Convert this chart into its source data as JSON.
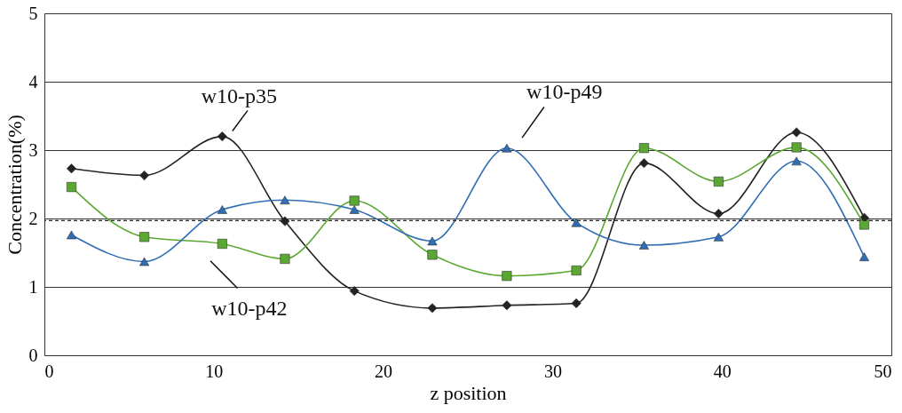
{
  "chart_data": {
    "type": "line",
    "xlabel": "z position",
    "ylabel": "Concentration(%)",
    "x": [
      1.6,
      5.9,
      10.5,
      14.2,
      18.3,
      22.9,
      27.3,
      31.4,
      35.4,
      39.8,
      44.4,
      48.4
    ],
    "xlim": [
      0,
      50
    ],
    "xticks": [
      0,
      10,
      20,
      30,
      40,
      50
    ],
    "ylim": [
      0,
      5
    ],
    "yticks": [
      0,
      1,
      2,
      3,
      4,
      5
    ],
    "grid": "y",
    "series": [
      {
        "name": "w10-p35",
        "color": "#222222",
        "marker": "diamond",
        "values": [
          2.73,
          2.63,
          3.2,
          1.96,
          0.94,
          0.69,
          0.73,
          0.76,
          2.81,
          2.07,
          3.26,
          2.01
        ]
      },
      {
        "name": "w10-p42",
        "color": "#5aa832",
        "marker": "square",
        "values": [
          2.46,
          1.73,
          1.63,
          1.41,
          2.26,
          1.47,
          1.16,
          1.24,
          3.03,
          2.54,
          3.04,
          1.91
        ]
      },
      {
        "name": "w10-p49",
        "color": "#2f6db5",
        "marker": "triangle",
        "values": [
          1.76,
          1.37,
          2.13,
          2.27,
          2.13,
          1.67,
          3.03,
          1.94,
          1.61,
          1.73,
          2.84,
          1.44
        ]
      }
    ],
    "ref_lines": [
      {
        "axis": "y",
        "value": 1.97,
        "line_style": "dashed",
        "color": "#222222"
      }
    ]
  }
}
